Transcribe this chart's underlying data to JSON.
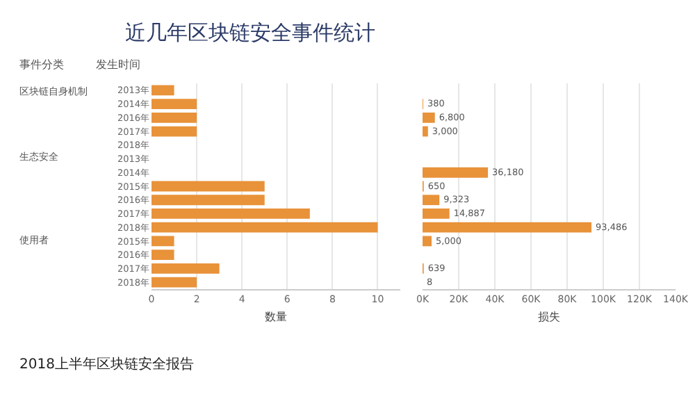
{
  "chart_data": [
    {
      "type": "bar",
      "orientation": "horizontal",
      "title": "近几年区块链安全事件统计",
      "xlabel": "数量",
      "color": "#e8923a",
      "categories": [
        "2013年",
        "2014年",
        "2016年",
        "2017年",
        "2018年",
        "2013年",
        "2014年",
        "2015年",
        "2016年",
        "2017年",
        "2018年",
        "2015年",
        "2016年",
        "2017年",
        "2018年"
      ],
      "values": [
        1,
        2,
        2,
        2,
        null,
        null,
        null,
        5,
        5,
        7,
        10,
        1,
        1,
        3,
        2
      ],
      "xlim": [
        0,
        11
      ],
      "xticks": [
        0,
        2,
        4,
        6,
        8,
        10
      ],
      "grid": "x",
      "annotations": [
        "事件分类",
        "发生时间",
        "区块链自身机制",
        "生态安全",
        "使用者",
        "2018上半年区块链安全报告"
      ]
    },
    {
      "type": "bar",
      "orientation": "horizontal",
      "xlabel": "损失",
      "color": "#e8923a",
      "categories": [
        null,
        null,
        null,
        null,
        null,
        null,
        null,
        null,
        null,
        null,
        null,
        null,
        null,
        null,
        null
      ],
      "values": [
        null,
        380,
        6800,
        3000,
        null,
        null,
        36180,
        650,
        9323,
        14887,
        93486,
        5000,
        null,
        639,
        8
      ],
      "value_labels": [
        null,
        "380",
        "6,800",
        "3,000",
        null,
        null,
        "36,180",
        "650",
        "9,323",
        "14,887",
        "93,486",
        "5,000",
        null,
        "639",
        "8"
      ],
      "xlim": [
        0,
        140000
      ],
      "xticks": [
        {
          "value": 0,
          "label": "0K"
        },
        {
          "value": 20000,
          "label": "20K"
        },
        {
          "value": 40000,
          "label": "40K"
        },
        {
          "value": 60000,
          "label": "60K"
        },
        {
          "value": 80000,
          "label": "80K"
        },
        {
          "value": 100000,
          "label": "100K"
        },
        {
          "value": 120000,
          "label": "120K"
        },
        {
          "value": 140000,
          "label": "140K"
        }
      ],
      "grid": "x",
      "tick_labels": "x"
    }
  ]
}
